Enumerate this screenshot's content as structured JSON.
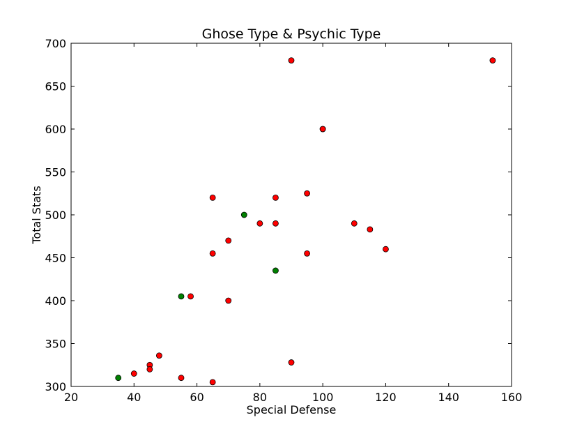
{
  "chart_data": {
    "type": "scatter",
    "title": "Ghose Type & Psychic Type",
    "xlabel": "Special Defense",
    "ylabel": "Total Stats",
    "xlim": [
      20,
      160
    ],
    "ylim": [
      300,
      700
    ],
    "xticks": [
      20,
      40,
      60,
      80,
      100,
      120,
      140,
      160
    ],
    "yticks": [
      300,
      350,
      400,
      450,
      500,
      550,
      600,
      650,
      700
    ],
    "grid": false,
    "series": [
      {
        "color": "#ff0000",
        "points": [
          [
            90,
            680
          ],
          [
            154,
            680
          ],
          [
            100,
            600
          ],
          [
            100,
            600
          ],
          [
            95,
            525
          ],
          [
            65,
            520
          ],
          [
            85,
            520
          ],
          [
            80,
            490
          ],
          [
            85,
            490
          ],
          [
            110,
            490
          ],
          [
            115,
            483
          ],
          [
            70,
            470
          ],
          [
            120,
            460
          ],
          [
            65,
            455
          ],
          [
            95,
            455
          ],
          [
            58,
            405
          ],
          [
            70,
            400
          ],
          [
            48,
            336
          ],
          [
            90,
            328
          ],
          [
            45,
            325
          ],
          [
            45,
            320
          ],
          [
            40,
            315
          ],
          [
            55,
            310
          ],
          [
            65,
            305
          ]
        ]
      },
      {
        "color": "#008000",
        "points": [
          [
            75,
            500
          ],
          [
            85,
            435
          ],
          [
            55,
            405
          ],
          [
            35,
            310
          ]
        ]
      }
    ]
  }
}
